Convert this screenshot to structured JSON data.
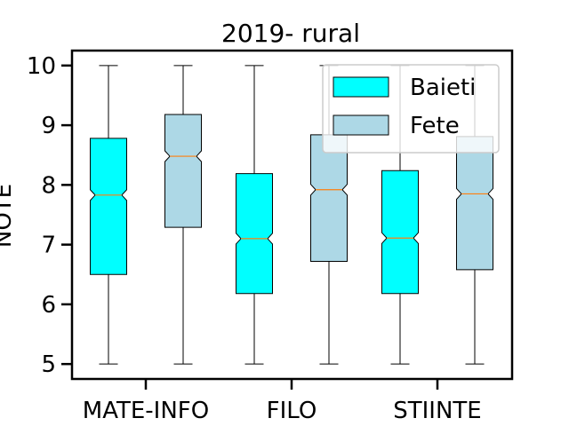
{
  "chart_data": {
    "type": "boxplot",
    "title": "2019- rural",
    "xlabel": "",
    "ylabel": "NOTE",
    "ylim": [
      4.75,
      10.25
    ],
    "yticks": [
      5,
      6,
      7,
      8,
      9,
      10
    ],
    "grid": false,
    "notched": true,
    "legend_position": "top-right",
    "categories": [
      "MATE-INFO",
      "FILO",
      "STIINTE"
    ],
    "series": [
      {
        "name": "Baieti",
        "color": "#00ffff",
        "boxes": [
          {
            "whislo": 5,
            "q1": 6.5,
            "med": 7.83,
            "q3": 8.78,
            "whishi": 10
          },
          {
            "whislo": 5,
            "q1": 6.18,
            "med": 7.1,
            "q3": 8.19,
            "whishi": 10
          },
          {
            "whislo": 5,
            "q1": 6.18,
            "med": 7.11,
            "q3": 8.24,
            "whishi": 10
          }
        ]
      },
      {
        "name": "Fete",
        "color": "#add8e6",
        "boxes": [
          {
            "whislo": 5,
            "q1": 7.29,
            "med": 8.48,
            "q3": 9.18,
            "whishi": 10
          },
          {
            "whislo": 5,
            "q1": 6.72,
            "med": 7.92,
            "q3": 8.84,
            "whishi": 10
          },
          {
            "whislo": 5,
            "q1": 6.58,
            "med": 7.85,
            "q3": 8.81,
            "whishi": 10
          }
        ]
      }
    ],
    "median_color": "#ff7f0e"
  }
}
